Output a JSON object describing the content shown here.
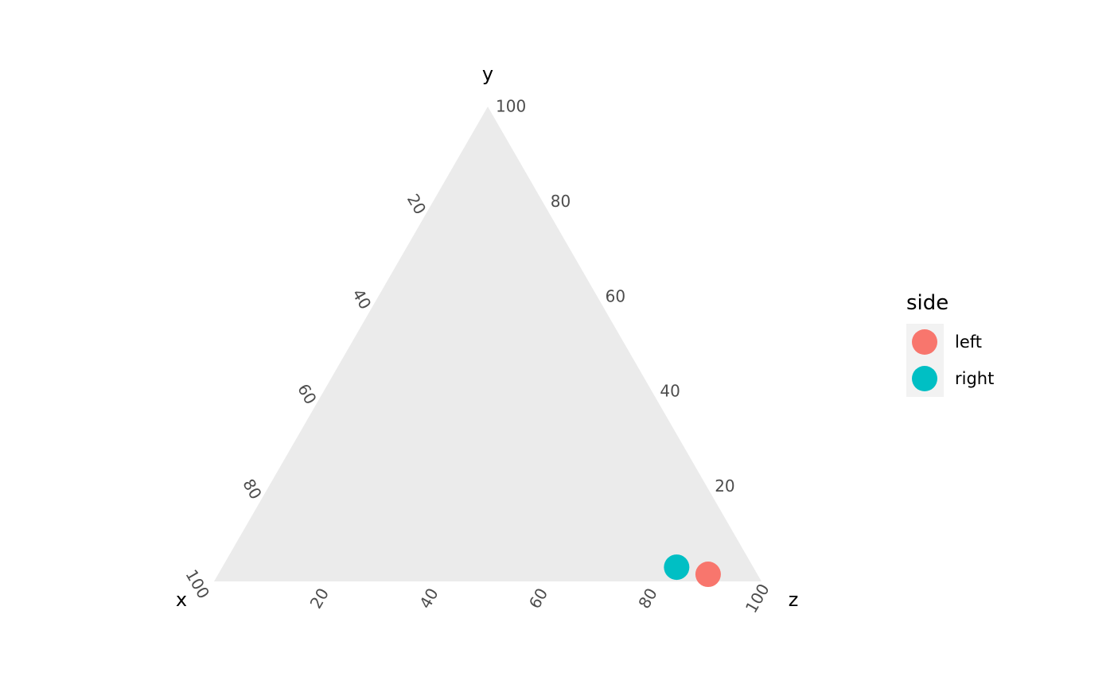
{
  "chart_data": {
    "type": "scatter",
    "subtype": "ternary",
    "axes": {
      "left": "x",
      "top": "y",
      "right": "z"
    },
    "ticks": [
      20,
      40,
      60,
      80,
      100
    ],
    "range": [
      0,
      100
    ],
    "panel_color": "#ebebeb",
    "grid": false,
    "series": [
      {
        "name": "left",
        "color": "#F8766D",
        "points": [
          {
            "x": 9,
            "y": 1.5,
            "z": 89.5
          }
        ]
      },
      {
        "name": "right",
        "color": "#00BFC4",
        "points": [
          {
            "x": 14,
            "y": 3,
            "z": 83
          }
        ]
      }
    ],
    "legend": {
      "title": "side",
      "position": "right"
    }
  }
}
